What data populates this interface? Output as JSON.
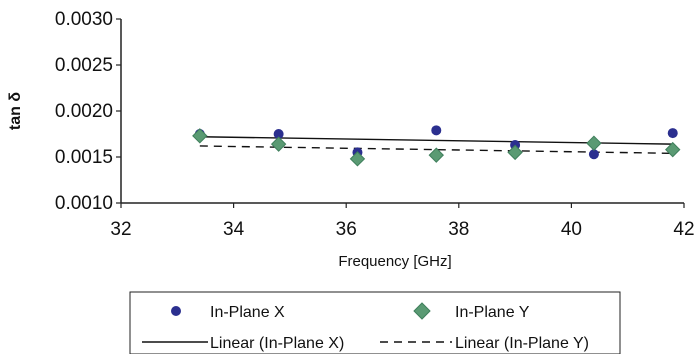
{
  "chart_data": {
    "type": "scatter",
    "xlabel": "Frequency [GHz]",
    "ylabel": "tan δ",
    "xlim": [
      32,
      42
    ],
    "ylim": [
      0.001,
      0.003
    ],
    "xticks": [
      "32",
      "34",
      "36",
      "38",
      "40",
      "42"
    ],
    "yticks": [
      "0.0010",
      "0.0015",
      "0.0020",
      "0.0025",
      "0.0030"
    ],
    "grid": false,
    "legend_position": "bottom",
    "series": [
      {
        "name": "In-Plane X",
        "marker": "circle",
        "color": "#2b2f8f",
        "x": [
          33.4,
          34.8,
          36.2,
          37.6,
          39.0,
          40.4,
          41.8
        ],
        "y": [
          0.00175,
          0.00175,
          0.00155,
          0.00179,
          0.00163,
          0.00153,
          0.00176
        ]
      },
      {
        "name": "In-Plane Y",
        "marker": "diamond",
        "color": "#5a9a73",
        "x": [
          33.4,
          34.8,
          36.2,
          37.6,
          39.0,
          40.4,
          41.8
        ],
        "y": [
          0.00173,
          0.00164,
          0.00148,
          0.00152,
          0.00155,
          0.00165,
          0.00158
        ]
      }
    ],
    "trendlines": [
      {
        "name": "Linear (In-Plane X)",
        "style": "solid",
        "color": "#111111",
        "x": [
          33.4,
          41.8
        ],
        "y": [
          0.00172,
          0.00164
        ]
      },
      {
        "name": "Linear (In-Plane Y)",
        "style": "dashed",
        "color": "#111111",
        "x": [
          33.4,
          41.8
        ],
        "y": [
          0.00162,
          0.00154
        ]
      }
    ]
  }
}
